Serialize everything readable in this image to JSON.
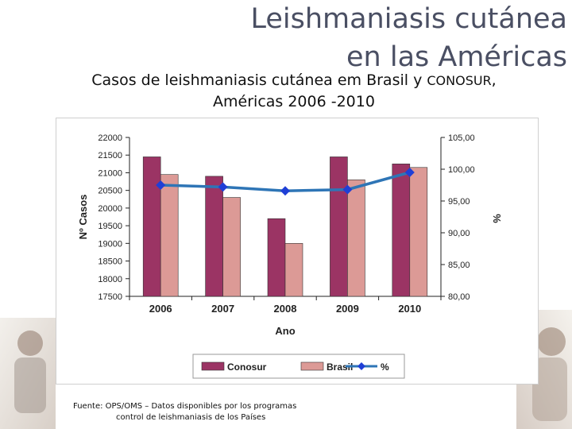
{
  "slide": {
    "title_line1": "Leishmaniasis cutánea",
    "title_line2": "en las Américas",
    "subtitle_line1_a": "Casos de leishmaniasis cutánea em Brasil y ",
    "subtitle_line1_b": "CONOSUR",
    "subtitle_line1_c": ",",
    "subtitle_line2": "Américas 2006 -2010",
    "source_line1": "Fuente: OPS/OMS – Datos disponibles por los programas",
    "source_line2": "control de leishmaniasis de los Países"
  },
  "colors": {
    "title": "#4a4f63",
    "conosur": "#9b3464",
    "brasil": "#dc9a96",
    "percent_line": "#2e75b6",
    "percent_marker": "#1f3fd6"
  },
  "chart_data": {
    "type": "bar",
    "categories": [
      "2006",
      "2007",
      "2008",
      "2009",
      "2010"
    ],
    "series": [
      {
        "name": "Conosur",
        "type": "bar",
        "axis": "left",
        "values": [
          21450,
          20900,
          19700,
          21450,
          21250
        ]
      },
      {
        "name": "Brasil",
        "type": "bar",
        "axis": "left",
        "values": [
          20950,
          20300,
          19000,
          20800,
          21150
        ]
      },
      {
        "name": "%",
        "type": "line",
        "axis": "right",
        "values": [
          97.5,
          97.2,
          96.6,
          96.8,
          99.5
        ]
      }
    ],
    "xlabel": "Ano",
    "ylabel": "Nº Casos",
    "y2label": "%",
    "ylim": [
      17500,
      22000
    ],
    "y2lim": [
      80,
      105
    ],
    "y_ticks": [
      "17500",
      "18000",
      "18500",
      "19000",
      "19500",
      "20000",
      "20500",
      "21000",
      "21500",
      "22000"
    ],
    "y2_ticks": [
      "80,00",
      "85,00",
      "90,00",
      "95,00",
      "100,00",
      "105,00"
    ],
    "legend": "bottom",
    "grid": false
  }
}
